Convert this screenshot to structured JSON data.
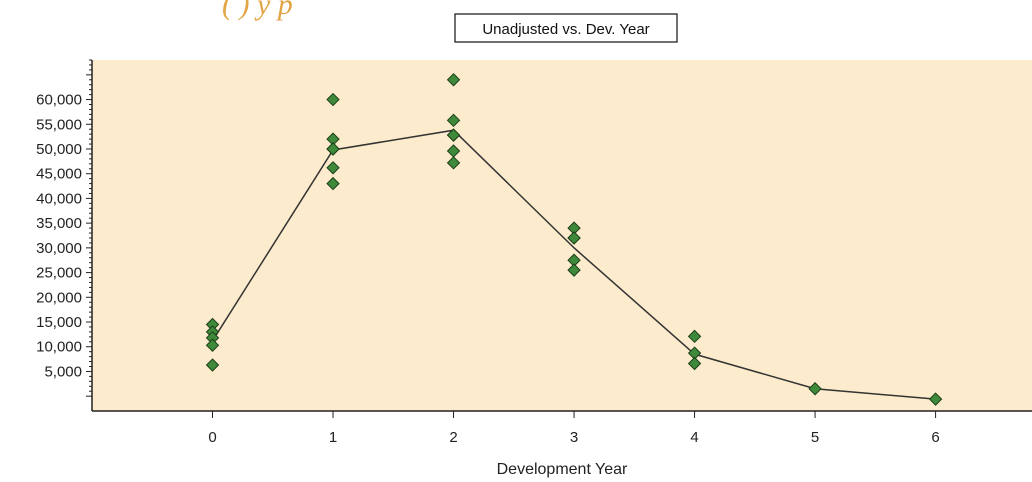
{
  "header_fragment": "(              ) y        p",
  "colors": {
    "plot_background": "#fcebcc",
    "marker_fill": "#3f8a3a",
    "marker_stroke": "#1d3f1a",
    "line": "#333333",
    "header_fragment": "#e2a545"
  },
  "chart_data": {
    "type": "scatter",
    "title": "Unadjusted vs. Dev. Year",
    "xlabel": "Development Year",
    "ylabel": "",
    "xlim": [
      -1,
      6.8
    ],
    "ylim": [
      -3000,
      68000
    ],
    "x_ticks": [
      0,
      1,
      2,
      3,
      4,
      5,
      6
    ],
    "x_tick_labels": [
      "0",
      "1",
      "2",
      "3",
      "4",
      "5",
      "6"
    ],
    "y_ticks": [
      5000,
      10000,
      15000,
      20000,
      25000,
      30000,
      35000,
      40000,
      45000,
      50000,
      55000,
      60000
    ],
    "y_tick_labels": [
      "5,000",
      "10,000",
      "15,000",
      "20,000",
      "25,000",
      "30,000",
      "35,000",
      "40,000",
      "45,000",
      "50,000",
      "55,000",
      "60,000"
    ],
    "grid": false,
    "legend": "none",
    "series": [
      {
        "kind": "points",
        "x": [
          0,
          0,
          0,
          0,
          0,
          1,
          1,
          1,
          1,
          1,
          1,
          2,
          2,
          2,
          2,
          2,
          2,
          3,
          3,
          3,
          3,
          3,
          4,
          4,
          4,
          5,
          6
        ],
        "y": [
          14500,
          13000,
          11800,
          10300,
          6300,
          60000,
          52000,
          50000,
          46200,
          43000,
          50000,
          64000,
          55800,
          52800,
          49600,
          47200,
          52800,
          34000,
          32000,
          27500,
          25500,
          32000,
          12100,
          8700,
          6600,
          1500,
          -600
        ]
      },
      {
        "kind": "line",
        "x": [
          0,
          1,
          2,
          3,
          4,
          5,
          6
        ],
        "y": [
          11200,
          49800,
          53800,
          30000,
          8500,
          1500,
          -600
        ]
      }
    ]
  }
}
